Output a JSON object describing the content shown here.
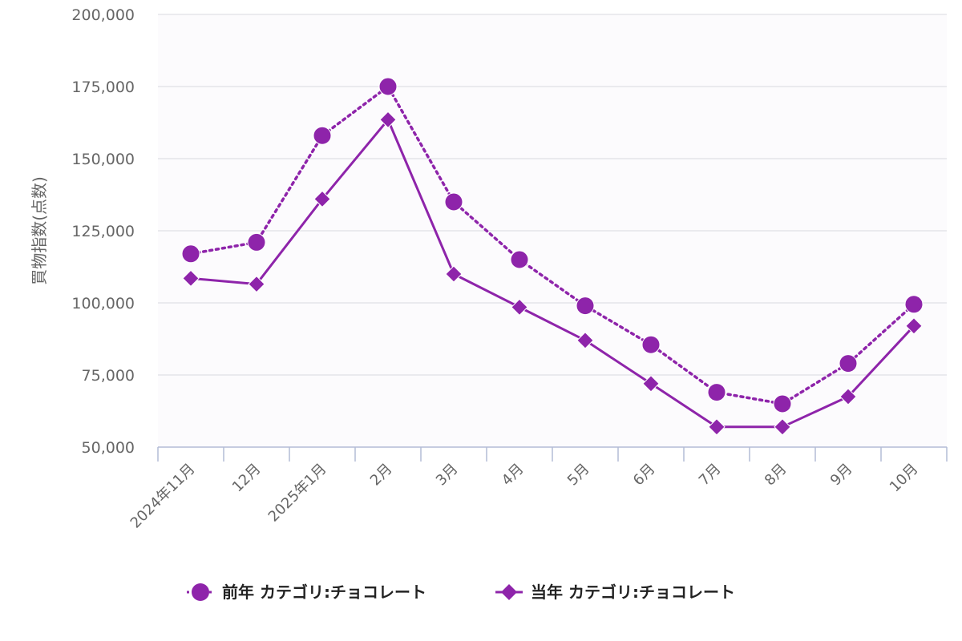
{
  "chart_data": {
    "type": "line",
    "categories": [
      "2024年11月",
      "12月",
      "2025年1月",
      "2月",
      "3月",
      "4月",
      "5月",
      "6月",
      "7月",
      "8月",
      "9月",
      "10月"
    ],
    "ylabel": "買物指数(点数)",
    "ylim": [
      50000,
      200000
    ],
    "yticks": [
      50000,
      75000,
      100000,
      125000,
      150000,
      175000,
      200000
    ],
    "ytick_labels": [
      "50,000",
      "75,000",
      "100,000",
      "125,000",
      "150,000",
      "175,000",
      "200,000"
    ],
    "grid": true,
    "legend_position": "bottom-center",
    "series": [
      {
        "name": "前年 カテゴリ:チョコレート",
        "marker": "circle",
        "line_style": "dotted",
        "color": "#8e24aa",
        "values": [
          117000,
          121000,
          158000,
          175000,
          135000,
          115000,
          99000,
          85500,
          69000,
          65000,
          79000,
          99500
        ]
      },
      {
        "name": "当年 カテゴリ:チョコレート",
        "marker": "diamond",
        "line_style": "solid",
        "color": "#8e24aa",
        "values": [
          108500,
          106500,
          136000,
          163500,
          110000,
          98500,
          87000,
          72000,
          57000,
          57000,
          67500,
          92000
        ]
      }
    ]
  }
}
